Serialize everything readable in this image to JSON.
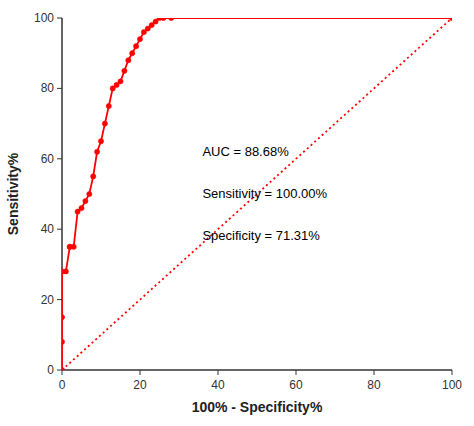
{
  "chart_data": {
    "type": "line",
    "xlabel": "100% - Specificity%",
    "ylabel": "Sensitivity%",
    "xlim": [
      0,
      100
    ],
    "ylim": [
      0,
      100
    ],
    "xticks": [
      0,
      20,
      40,
      60,
      80,
      100
    ],
    "yticks": [
      0,
      20,
      40,
      60,
      80,
      100
    ],
    "grid": false,
    "series": [
      {
        "type": "line",
        "color": "#FF0000",
        "line_style": "solid",
        "marker": "circle",
        "x": [
          0,
          0,
          0,
          0,
          1,
          2,
          2,
          3,
          4,
          5,
          6,
          7,
          8,
          9,
          10,
          11,
          12,
          13,
          14,
          15,
          16,
          17,
          18,
          19,
          20,
          21,
          22,
          23,
          24,
          25,
          26,
          28,
          100
        ],
        "values": [
          0,
          8,
          15,
          28,
          28,
          35,
          35,
          35,
          45,
          46,
          48,
          50,
          55,
          62,
          65,
          70,
          75,
          80,
          81,
          82,
          85,
          88,
          90,
          92,
          94,
          96,
          97,
          98,
          99,
          100,
          100,
          100,
          100
        ]
      },
      {
        "type": "line",
        "color": "#FF0000",
        "line_style": "dotted",
        "marker": "none",
        "x": [
          0,
          100
        ],
        "values": [
          0,
          100
        ]
      }
    ],
    "annotations": [
      "AUC = 88.68%",
      "Sensitivity = 100.00%",
      "Specificity = 71.31%"
    ]
  }
}
